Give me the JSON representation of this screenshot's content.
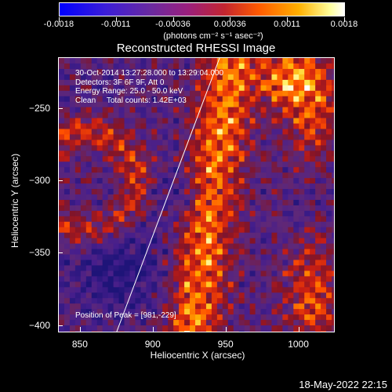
{
  "colorbar": {
    "tick_labels": [
      "-0.0018",
      "-0.0011",
      "-0.00036",
      "0.00036",
      "0.0011",
      "0.0018"
    ],
    "unit_label": "(photons cm⁻² s⁻¹ asec⁻²)",
    "range": [
      -0.0018,
      0.0018
    ]
  },
  "plot": {
    "title": "Reconstructed RHESSI Image",
    "info_lines": [
      "30-Oct-2014 13:27:28.000 to 13:29:04.000",
      "Detectors: 3F 6F 9F, Att 0",
      "Energy Range: 25.0 - 50.0 keV",
      "Clean     Total counts: 1.42E+03"
    ],
    "peak_text": "Position of Peak = [981,-229]"
  },
  "footer": {
    "timestamp": "18-May-2022 22:15"
  },
  "chart_data": {
    "type": "heatmap",
    "title": "Reconstructed RHESSI Image",
    "xlabel": "Heliocentric X (arcsec)",
    "ylabel": "Heliocentric Y (arcsec)",
    "xlim": [
      835,
      1025
    ],
    "ylim": [
      -405,
      -215
    ],
    "x_ticks": [
      850,
      900,
      950,
      1000
    ],
    "x_tick_labels": [
      "850",
      "900",
      "950",
      "1000"
    ],
    "y_ticks": [
      -250,
      -300,
      -350,
      -400
    ],
    "y_tick_labels": [
      "−250",
      "−300",
      "−350",
      "−400"
    ],
    "peak_position": [
      981,
      -229
    ],
    "limb_line": {
      "x": [
        875,
        946
      ],
      "y": [
        -405,
        -215
      ]
    },
    "colorscale": [
      "#0000ff",
      "#6a2aa0",
      "#c3252f",
      "#ff5a00",
      "#ffb000",
      "#ffffff"
    ]
  }
}
